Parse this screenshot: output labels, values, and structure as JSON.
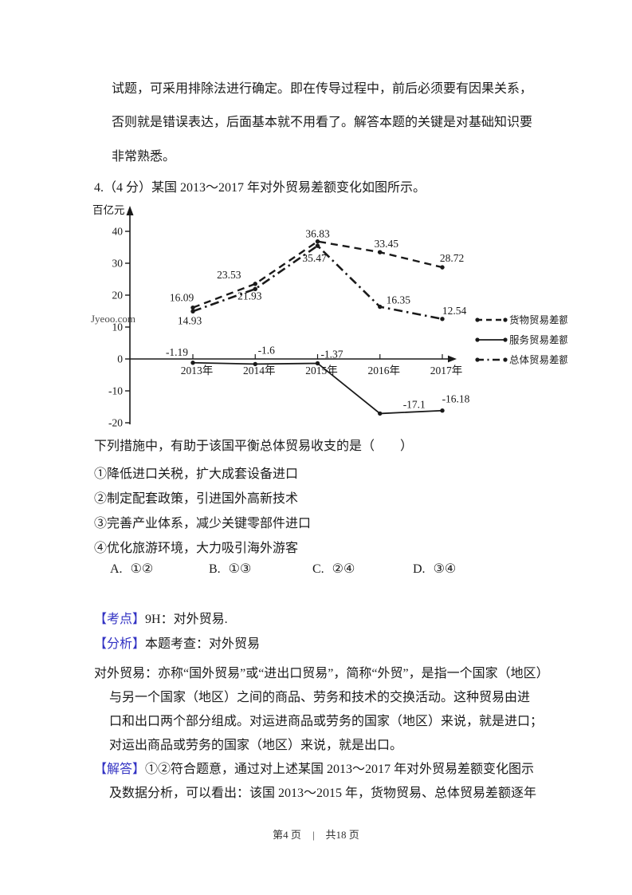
{
  "colors": {
    "tag_blue": "#3232c3",
    "text": "#1b1b1b",
    "chart_stroke": "#1a1a1a",
    "watermark_gray": "#c8cbd2"
  },
  "page": {
    "watermark": "Jyeoo.com",
    "footer": {
      "current": "第4 页",
      "separator": "|",
      "total": "共18 页"
    }
  },
  "intro": {
    "lines": [
      "试题，可采用排除法进行确定。即在传导过程中，前后必须要有因果关系，",
      "否则就是错误表达，后面基本就不用看了。解答本题的关键是对基础知识要",
      "非常熟悉。"
    ]
  },
  "question": {
    "heading": "4.（4 分）某国 2013～2017 年对外贸易差额变化如图所示。",
    "stem": "下列措施中，有助于该国平衡总体贸易收支的是（　　）",
    "items": [
      "①降低进口关税，扩大成套设备进口",
      "②制定配套政策，引进国外高新技术",
      "③完善产业体系，减少关键零部件进口",
      "④优化旅游环境，大力吸引海外游客"
    ],
    "choices": [
      {
        "label": "A.",
        "value": "①②"
      },
      {
        "label": "B.",
        "value": "①③"
      },
      {
        "label": "C.",
        "value": "②④"
      },
      {
        "label": "D.",
        "value": "③④"
      }
    ]
  },
  "chart_data": {
    "type": "line",
    "title": "",
    "xlabel": "",
    "ylabel": "百亿元",
    "x": [
      "2013年",
      "2014年",
      "2015年",
      "2016年",
      "2017年"
    ],
    "yticks": [
      40,
      30,
      20,
      10,
      0,
      -10,
      -20
    ],
    "ylim": [
      -20,
      45
    ],
    "grid": false,
    "legend_position": "right",
    "series": [
      {
        "name": "货物贸易差额",
        "style": "dashed",
        "values": [
          16.09,
          23.53,
          36.83,
          33.45,
          28.72
        ]
      },
      {
        "name": "服务贸易差额",
        "style": "solid",
        "values": [
          -1.19,
          -1.6,
          -1.37,
          -17.1,
          -16.18
        ]
      },
      {
        "name": "总体贸易差额",
        "style": "dashdot",
        "values": [
          14.93,
          21.93,
          35.47,
          16.35,
          12.54
        ]
      }
    ]
  },
  "answer": {
    "kaodian_tag": "【考点】",
    "kaodian_text": "9H：对外贸易.",
    "fenxi_tag": "【分析】",
    "fenxi_text": "本题考查：对外贸易",
    "analysis_lines": [
      "对外贸易：亦称“国外贸易”或“进出口贸易”，简称“外贸”，是指一个国家（地区）",
      "与另一个国家（地区）之间的商品、劳务和技术的交换活动。这种贸易由进",
      "口和出口两个部分组成。对运进商品或劳务的国家（地区）来说，就是进口；",
      "对运出商品或劳务的国家（地区）来说，就是出口。"
    ],
    "jieda_tag": "【解答】",
    "jieda_lines": [
      "①②符合题意，通过对上述某国 2013～2017 年对外贸易差额变化图示",
      "及数据分析，可以看出：该国 2013～2015 年，货物贸易、总体贸易差额逐年"
    ]
  }
}
